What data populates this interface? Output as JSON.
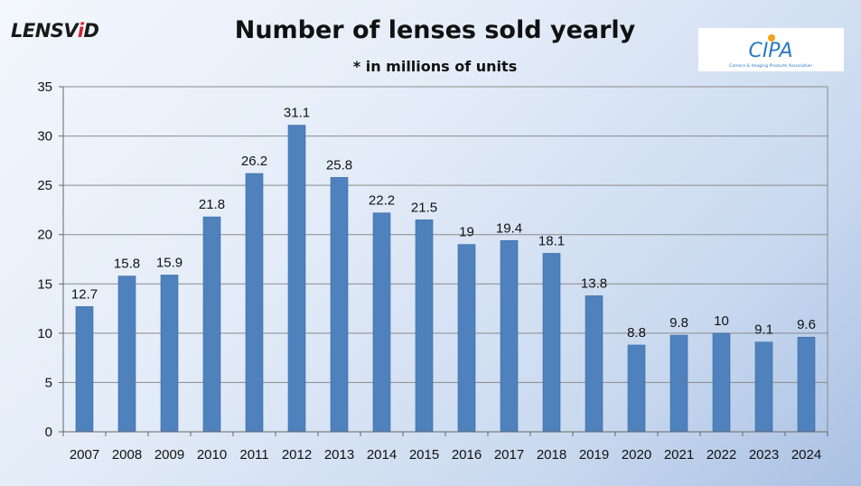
{
  "brand": {
    "left_logo_main": "LENSV",
    "left_logo_accent": "i",
    "left_logo_end": "D",
    "right_logo_text": "CIPA",
    "right_logo_caption": "Camera & Imaging Products Association"
  },
  "colors": {
    "bar": "#4f81bd",
    "bar_edge": "#3b6aa5",
    "grid": "#8a8a8a",
    "axis": "#666666"
  },
  "chart_data": {
    "type": "bar",
    "title": "Number of lenses sold yearly",
    "subtitle": "* in millions of units",
    "xlabel": "",
    "ylabel": "",
    "categories": [
      "2007",
      "2008",
      "2009",
      "2010",
      "2011",
      "2012",
      "2013",
      "2014",
      "2015",
      "2016",
      "2017",
      "2018",
      "2019",
      "2020",
      "2021",
      "2022",
      "2023",
      "2024"
    ],
    "values": [
      12.7,
      15.8,
      15.9,
      21.8,
      26.2,
      31.1,
      25.8,
      22.2,
      21.5,
      19,
      19.4,
      18.1,
      13.8,
      8.8,
      9.8,
      10,
      9.1,
      9.6
    ],
    "data_labels": [
      "12.7",
      "15.8",
      "15.9",
      "21.8",
      "26.2",
      "31.1",
      "25.8",
      "22.2",
      "21.5",
      "19",
      "19.4",
      "18.1",
      "13.8",
      "8.8",
      "9.8",
      "10",
      "9.1",
      "9.6"
    ],
    "ylim": [
      0,
      35
    ],
    "yticks": [
      0,
      5,
      10,
      15,
      20,
      25,
      30,
      35
    ],
    "grid": true,
    "legend": "none"
  }
}
